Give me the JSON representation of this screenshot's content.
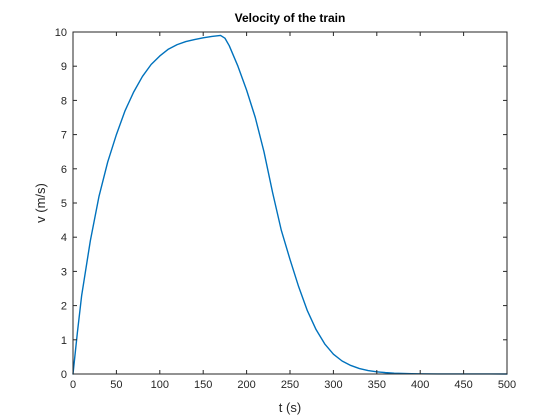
{
  "chart_data": {
    "type": "line",
    "title": "Velocity of the train",
    "xlabel": "t (s)",
    "ylabel": "v (m/s)",
    "xlim": [
      0,
      500
    ],
    "ylim": [
      0,
      10
    ],
    "xticks": [
      0,
      50,
      100,
      150,
      200,
      250,
      300,
      350,
      400,
      450,
      500
    ],
    "yticks": [
      0,
      1,
      2,
      3,
      4,
      5,
      6,
      7,
      8,
      9,
      10
    ],
    "grid": false,
    "box": true,
    "colors": {
      "line": "#0072BD",
      "axis": "#262626"
    },
    "series": [
      {
        "x": [
          0,
          5,
          10,
          20,
          30,
          40,
          50,
          60,
          70,
          80,
          90,
          100,
          110,
          120,
          130,
          140,
          150,
          160,
          170,
          175,
          180,
          190,
          200,
          210,
          220,
          230,
          240,
          250,
          260,
          270,
          280,
          290,
          300,
          310,
          320,
          330,
          340,
          350,
          360,
          370,
          380,
          390,
          400,
          420,
          450,
          480,
          500
        ],
        "y": [
          0,
          1.2,
          2.3,
          3.9,
          5.2,
          6.2,
          7.0,
          7.7,
          8.25,
          8.7,
          9.05,
          9.3,
          9.5,
          9.63,
          9.72,
          9.78,
          9.83,
          9.87,
          9.9,
          9.82,
          9.6,
          9.0,
          8.3,
          7.5,
          6.5,
          5.3,
          4.2,
          3.35,
          2.55,
          1.85,
          1.3,
          0.88,
          0.58,
          0.38,
          0.25,
          0.16,
          0.1,
          0.065,
          0.04,
          0.025,
          0.016,
          0.01,
          0.006,
          0.003,
          0.001,
          0.0005,
          0.0003
        ]
      }
    ]
  }
}
